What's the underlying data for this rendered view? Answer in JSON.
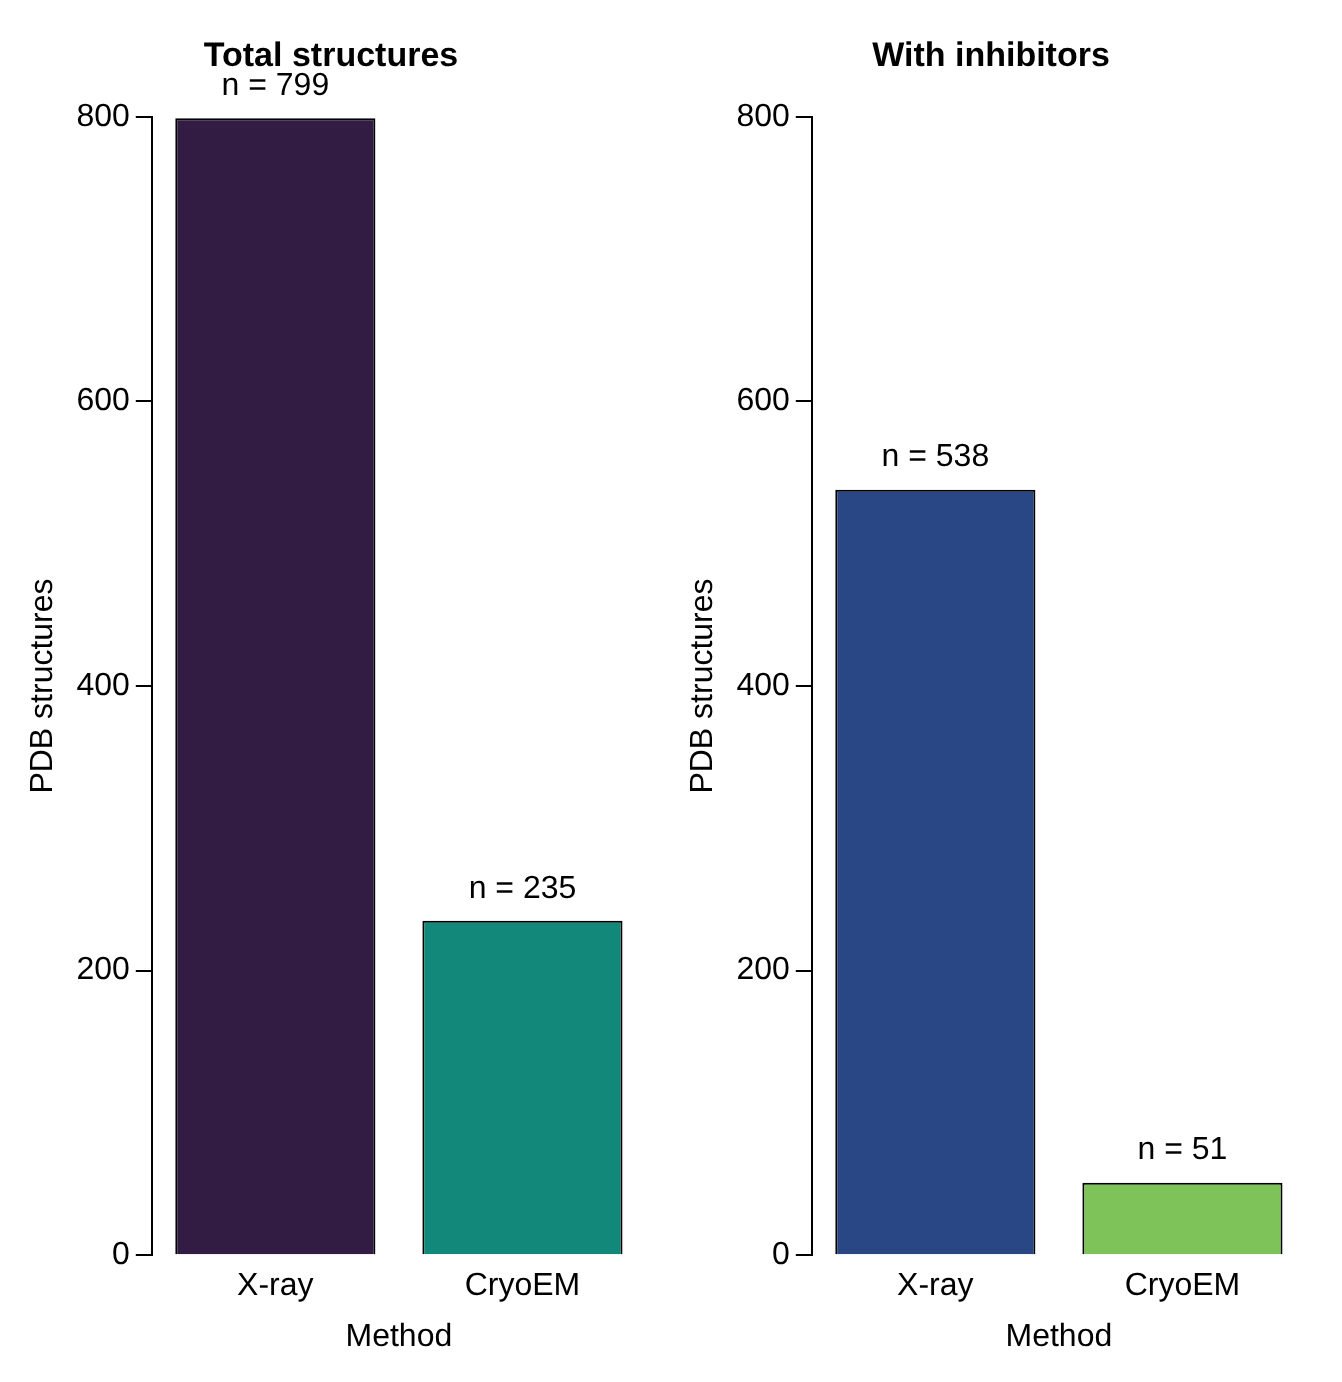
{
  "chart_data": [
    {
      "type": "bar",
      "title": "Total structures",
      "xlabel": "Method",
      "ylabel": "PDB structures",
      "categories": [
        "X-ray",
        "CryoEM"
      ],
      "values": [
        799,
        235
      ],
      "colors": [
        "#331c43",
        "#12887a"
      ],
      "value_labels": [
        "n = 799",
        "n = 235"
      ],
      "ylim": [
        0,
        800
      ],
      "yticks": [
        0,
        200,
        400,
        600,
        800
      ],
      "grid": false,
      "legend": false
    },
    {
      "type": "bar",
      "title": "With inhibitors",
      "xlabel": "Method",
      "ylabel": "PDB structures",
      "categories": [
        "X-ray",
        "CryoEM"
      ],
      "values": [
        538,
        51
      ],
      "colors": [
        "#2a4785",
        "#7dc359"
      ],
      "value_labels": [
        "n = 538",
        "n = 51"
      ],
      "ylim": [
        0,
        800
      ],
      "yticks": [
        0,
        200,
        400,
        600,
        800
      ],
      "grid": false,
      "legend": false
    }
  ]
}
